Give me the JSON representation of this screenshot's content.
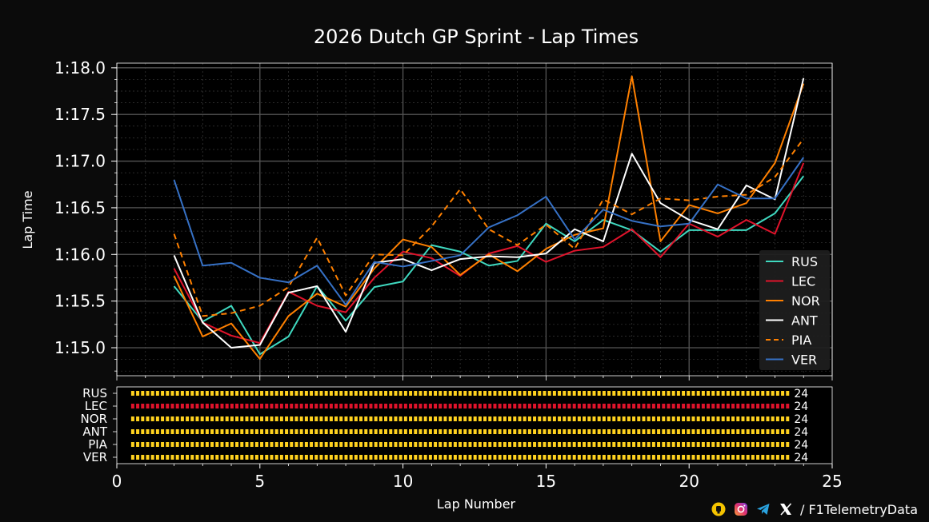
{
  "chart_data": [
    {
      "type": "line",
      "title": "2026 Dutch GP Sprint - Lap Times",
      "xlabel": "Lap Number",
      "ylabel": "Lap Time",
      "xlim": [
        0,
        25
      ],
      "ylim": [
        74.7,
        78.05
      ],
      "x_ticks": [
        0,
        5,
        10,
        15,
        20,
        25
      ],
      "y_ticks": [
        {
          "value": 75.0,
          "label": "1:15.0"
        },
        {
          "value": 75.5,
          "label": "1:15.5"
        },
        {
          "value": 76.0,
          "label": "1:16.0"
        },
        {
          "value": 76.5,
          "label": "1:16.5"
        },
        {
          "value": 77.0,
          "label": "1:17.0"
        },
        {
          "value": 77.5,
          "label": "1:17.5"
        },
        {
          "value": 78.0,
          "label": "1:18.0"
        }
      ],
      "grid": true,
      "legend_position": "lower-right",
      "x": [
        2,
        3,
        4,
        5,
        6,
        7,
        8,
        9,
        10,
        11,
        12,
        13,
        14,
        15,
        16,
        17,
        18,
        19,
        20,
        21,
        22,
        23,
        24
      ],
      "series": [
        {
          "name": "RUS",
          "color": "#3fd9c0",
          "dash": false,
          "values": [
            75.66,
            75.28,
            75.45,
            74.93,
            75.12,
            75.66,
            75.29,
            75.65,
            75.71,
            76.1,
            76.03,
            75.88,
            75.93,
            76.33,
            76.14,
            76.37,
            76.26,
            76.03,
            76.26,
            76.26,
            76.26,
            76.44,
            76.84
          ]
        },
        {
          "name": "LEC",
          "color": "#e0132b",
          "dash": false,
          "values": [
            75.85,
            75.27,
            75.13,
            75.05,
            75.6,
            75.45,
            75.38,
            75.75,
            76.03,
            75.96,
            75.77,
            76.01,
            76.09,
            75.92,
            76.04,
            76.08,
            76.27,
            75.97,
            76.33,
            76.19,
            76.37,
            76.22,
            76.98
          ]
        },
        {
          "name": "NOR",
          "color": "#ff8000",
          "dash": false,
          "values": [
            75.77,
            75.12,
            75.26,
            74.88,
            75.34,
            75.58,
            75.44,
            75.85,
            76.16,
            76.08,
            75.78,
            76.0,
            75.82,
            76.06,
            76.21,
            76.28,
            77.91,
            76.14,
            76.53,
            76.44,
            76.55,
            76.98,
            77.83
          ]
        },
        {
          "name": "ANT",
          "color": "#ffffff",
          "dash": false,
          "values": [
            75.99,
            75.27,
            75.0,
            75.03,
            75.59,
            75.66,
            75.17,
            75.91,
            75.95,
            75.83,
            75.95,
            75.98,
            75.97,
            76.01,
            76.27,
            76.14,
            77.08,
            76.55,
            76.37,
            76.27,
            76.74,
            76.59,
            77.89
          ]
        },
        {
          "name": "PIA",
          "color": "#ff8000",
          "dash": true,
          "values": [
            76.22,
            75.34,
            75.37,
            75.45,
            75.65,
            76.18,
            75.56,
            76.0,
            75.99,
            76.3,
            76.7,
            76.27,
            76.1,
            76.32,
            76.06,
            76.59,
            76.43,
            76.6,
            76.58,
            76.62,
            76.64,
            76.83,
            77.24
          ]
        },
        {
          "name": "VER",
          "color": "#3671c6",
          "dash": false,
          "values": [
            76.8,
            75.88,
            75.91,
            75.75,
            75.7,
            75.88,
            75.46,
            75.92,
            75.87,
            75.93,
            75.99,
            76.29,
            76.42,
            76.62,
            76.16,
            76.48,
            76.36,
            76.3,
            76.33,
            76.75,
            76.6,
            76.6,
            77.04
          ]
        }
      ]
    },
    {
      "type": "bar",
      "orientation": "horizontal",
      "drivers": [
        "RUS",
        "LEC",
        "NOR",
        "ANT",
        "PIA",
        "VER"
      ],
      "laps_completed": [
        24,
        24,
        24,
        24,
        24,
        24
      ],
      "bar_colors": [
        "#ffd21f",
        "#e0132b",
        "#ffd21f",
        "#ffd21f",
        "#ffd21f",
        "#ffd21f"
      ],
      "xlim": [
        0,
        25
      ],
      "ticks": [
        0,
        5,
        10,
        15,
        20,
        25
      ]
    }
  ],
  "footer": {
    "handle": "/ F1TelemetryData",
    "icons": [
      "fan-club-icon",
      "instagram-icon",
      "telegram-icon",
      "x-icon"
    ]
  }
}
